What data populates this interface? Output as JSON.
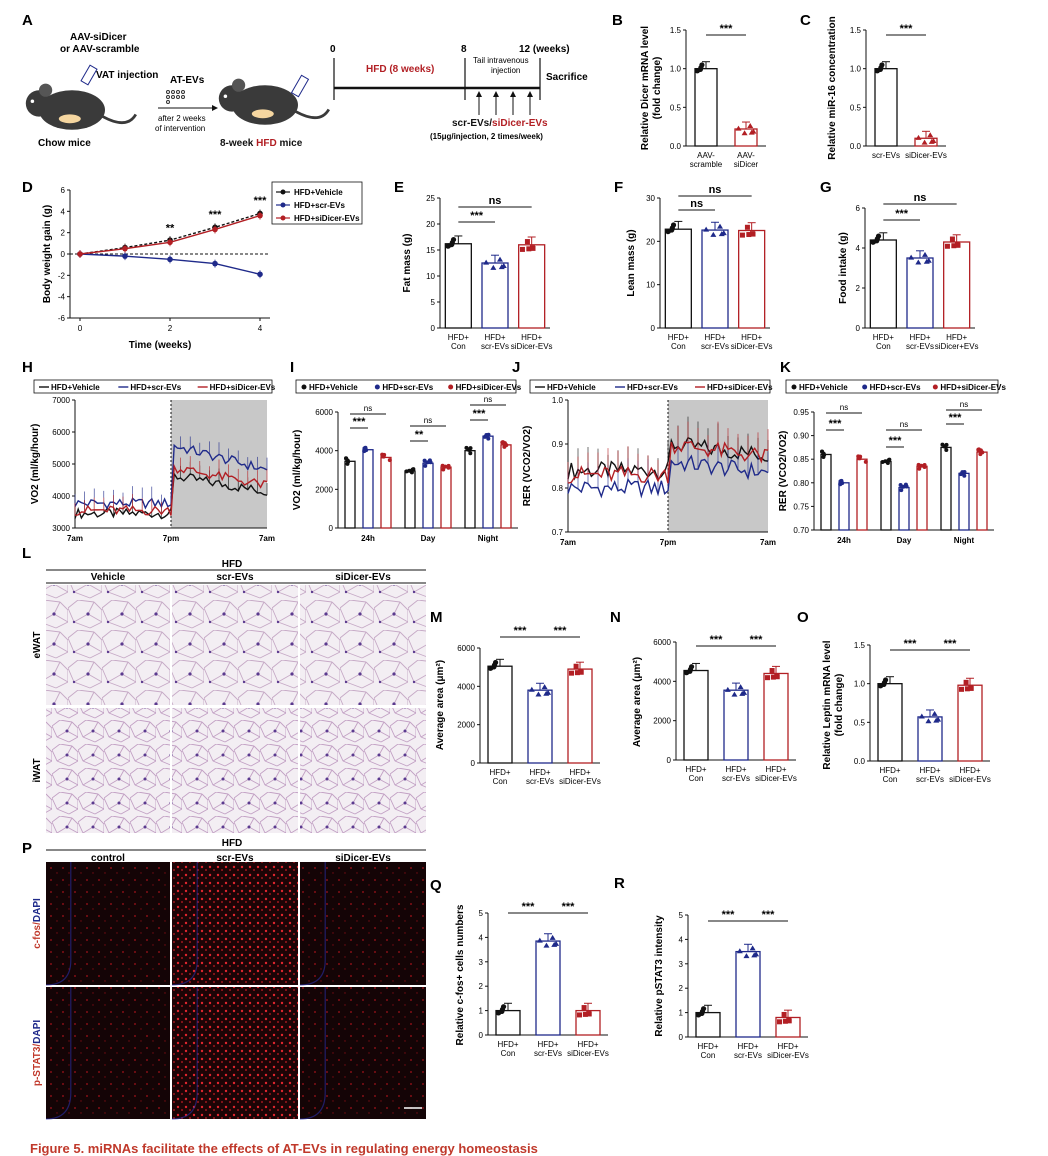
{
  "caption": "Figure 5. miRNAs facilitate the effects of AT-EVs in regulating energy homeostasis",
  "colors": {
    "black": "#111111",
    "blue": "#1f2a8a",
    "red": "#b21f24",
    "shade": "#c8c8c8"
  },
  "panels": {
    "A": {
      "label": "A",
      "aav1": "AAV-siDicer",
      "aav2": "or  AAV-scramble",
      "vat": "VAT injection",
      "atevs": "AT-EVs",
      "after1": "after 2 weeks",
      "after2": "of intervention",
      "chow": "Chow mice",
      "hfd_mice_pre": "8-week ",
      "hfd_mice_hfd": "HFD",
      "hfd_mice_post": " mice",
      "t0": "0",
      "t8": "8",
      "t12": "12 (weeks)",
      "hfd8": "HFD (8 weeks)",
      "tail1": "Tail intravenous",
      "tail2": "injection",
      "sacrifice": "Sacrifice",
      "ev_scr": "scr-EVs/",
      "ev_si": "siDicer-EVs",
      "dose": "(15μg/injection, 2 times/week)"
    },
    "B": {
      "label": "B",
      "ylabel1": "Relative Dicer mRNA level",
      "ylabel2": "(fold change)",
      "ticks": [
        "0.0",
        "0.5",
        "1.0",
        "1.5"
      ],
      "groups": [
        "AAV-\nscramble",
        "AAV-\nsiDicer"
      ],
      "values": [
        1.0,
        0.22
      ],
      "sig": "***"
    },
    "C": {
      "label": "C",
      "ylabel": "Relative miR-16 concentration",
      "ticks": [
        "0.0",
        "0.5",
        "1.0",
        "1.5"
      ],
      "groups": [
        "scr-EVs",
        "siDicer-EVs"
      ],
      "values": [
        1.0,
        0.1
      ],
      "sig": "***"
    },
    "D": {
      "label": "D",
      "ylabel": "Body weight gain (g)",
      "xlabel": "Time (weeks)",
      "yticks": [
        "-6",
        "-4",
        "-2",
        "0",
        "2",
        "4",
        "6"
      ],
      "xticks": [
        "0",
        "2",
        "4"
      ],
      "legend": [
        "HFD+Vehicle",
        "HFD+scr-EVs",
        "HFD+siDicer-EVs"
      ],
      "sigs": [
        "**",
        "***",
        "***"
      ]
    },
    "E": {
      "label": "E",
      "ylabel": "Fat mass (g)",
      "ticks": [
        "0",
        "5",
        "10",
        "15",
        "20",
        "25"
      ],
      "groups": [
        "HFD+\nCon",
        "HFD+\nscr-EVs",
        "HFD+\nsiDicer-EVs"
      ],
      "values": [
        16.2,
        12.5,
        16.0
      ],
      "sig1": "***",
      "sig2": "ns"
    },
    "F": {
      "label": "F",
      "ylabel": "Lean mass (g)",
      "ticks": [
        "0",
        "10",
        "20",
        "30"
      ],
      "groups": [
        "HFD+\nCon",
        "HFD+\nscr-EVs",
        "HFD+\nsiDicer-EVs"
      ],
      "values": [
        22.8,
        22.6,
        22.5
      ],
      "sig1": "ns",
      "sig2": "ns"
    },
    "G": {
      "label": "G",
      "ylabel": "Food intake (g)",
      "ticks": [
        "0",
        "2",
        "4",
        "6"
      ],
      "groups": [
        "HFD+\nCon",
        "HFD+\nscr-EVs",
        "HFD+\nsiDicer+EVs"
      ],
      "values": [
        4.4,
        3.5,
        4.3
      ],
      "sig1": "***",
      "sig2": "ns"
    },
    "H": {
      "label": "H",
      "ylabel": "VO2 (ml/kg/hour)",
      "ticks": [
        "3000",
        "4000",
        "5000",
        "6000",
        "7000"
      ],
      "xticks": [
        "7am",
        "7pm",
        "7am"
      ],
      "legend": [
        "HFD+Vehicle",
        "HFD+scr-EVs",
        "HFD+siDicer-EVs"
      ]
    },
    "I": {
      "label": "I",
      "ylabel": "VO2 (ml/kg/hour)",
      "ticks": [
        "0",
        "2000",
        "4000",
        "6000"
      ],
      "groups": [
        "24h",
        "Day",
        "Night"
      ],
      "legend": [
        "HFD+Vehicle",
        "HFD+scr-EVs",
        "HFD+siDicer-EVs"
      ],
      "values": [
        [
          3450,
          4050,
          3650
        ],
        [
          2950,
          3350,
          3150
        ],
        [
          4000,
          4750,
          4300
        ]
      ],
      "sigs": [
        [
          "ns",
          "***"
        ],
        [
          "ns",
          "**"
        ],
        [
          "ns",
          "***"
        ]
      ]
    },
    "J": {
      "label": "J",
      "ylabel": "RER (VCO2/VO2)",
      "ticks": [
        "0.7",
        "0.8",
        "0.9",
        "1.0"
      ],
      "xticks": [
        "7am",
        "7pm",
        "7am"
      ],
      "legend": [
        "HFD+Vehicle",
        "HFD+scr-EVs",
        "HFD+siDicer-EVs"
      ]
    },
    "K": {
      "label": "K",
      "ylabel": "RER (VCO2/VO2)",
      "ticks": [
        "0.70",
        "0.75",
        "0.80",
        "0.85",
        "0.90",
        "0.95"
      ],
      "groups": [
        "24h",
        "Day",
        "Night"
      ],
      "legend": [
        "HFD+Vehicle",
        "HFD+scr-EVs",
        "HFD+siDicer-EVs"
      ],
      "values": [
        [
          0.86,
          0.8,
          0.85
        ],
        [
          0.845,
          0.79,
          0.835
        ],
        [
          0.875,
          0.82,
          0.865
        ]
      ],
      "sigs": [
        [
          "ns",
          "***"
        ],
        [
          "ns",
          "***"
        ],
        [
          "ns",
          "***"
        ]
      ]
    },
    "L": {
      "label": "L",
      "hfd": "HFD",
      "cols": [
        "Vehicle",
        "scr-EVs",
        "siDicer-EVs"
      ],
      "rows": [
        "eWAT",
        "iWAT"
      ]
    },
    "M": {
      "label": "M",
      "ylabel": "Average area (μm²)",
      "ticks": [
        "0",
        "2000",
        "4000",
        "6000"
      ],
      "groups": [
        "HFD+\nCon",
        "HFD+\nscr-EVs",
        "HFD+\nsiDicer-EVs"
      ],
      "values": [
        5050,
        3800,
        4900
      ],
      "sig1": "***",
      "sig2": "***"
    },
    "N": {
      "label": "N",
      "ylabel": "Average area (μm²)",
      "ticks": [
        "0",
        "2000",
        "4000",
        "6000"
      ],
      "groups": [
        "HFD+\nCon",
        "HFD+\nscr-EVs",
        "HFD+\nsiDicer-EVs"
      ],
      "values": [
        4550,
        3550,
        4400
      ],
      "sig1": "***",
      "sig2": "***"
    },
    "O": {
      "label": "O",
      "ylabel1": "Relative Leptin mRNA level",
      "ylabel2": "(fold change)",
      "ticks": [
        "0.0",
        "0.5",
        "1.0",
        "1.5"
      ],
      "groups": [
        "HFD+\nCon",
        "HFD+\nscr-EVs",
        "HFD+\nsiDicer-EVs"
      ],
      "values": [
        1.0,
        0.57,
        0.98
      ],
      "sig1": "***",
      "sig2": "***"
    },
    "P": {
      "label": "P",
      "hfd": "HFD",
      "cols": [
        "control",
        "scr-EVs",
        "siDicer-EVs"
      ],
      "rows": [
        "c-fos/DAPI",
        "p-STAT3/DAPI"
      ]
    },
    "Q": {
      "label": "Q",
      "ylabel": "Relative c-fos+ cells numbers",
      "ticks": [
        "0",
        "1",
        "2",
        "3",
        "4",
        "5"
      ],
      "groups": [
        "HFD+\nCon",
        "HFD+\nscr-EVs",
        "HFD+\nsiDicer-EVs"
      ],
      "values": [
        1.0,
        3.85,
        1.0
      ],
      "sig1": "***",
      "sig2": "***"
    },
    "R": {
      "label": "R",
      "ylabel": "Relative pSTAT3 intensity",
      "ticks": [
        "0",
        "1",
        "2",
        "3",
        "4",
        "5"
      ],
      "groups": [
        "HFD+\nCon",
        "HFD+\nscr-EVs",
        "HFD+\nsiDicer-EVs"
      ],
      "values": [
        1.0,
        3.5,
        0.8
      ],
      "sig1": "***",
      "sig2": "***"
    }
  },
  "chart_data": [
    {
      "panel": "B",
      "type": "bar",
      "categories": [
        "AAV-scramble",
        "AAV-siDicer"
      ],
      "values": [
        1.0,
        0.22
      ],
      "ylabel": "Relative Dicer mRNA level (fold change)",
      "ylim": [
        0,
        1.5
      ]
    },
    {
      "panel": "C",
      "type": "bar",
      "categories": [
        "scr-EVs",
        "siDicer-EVs"
      ],
      "values": [
        1.0,
        0.1
      ],
      "ylabel": "Relative miR-16 concentration",
      "ylim": [
        0,
        1.5
      ]
    },
    {
      "panel": "D",
      "type": "line",
      "x": [
        0,
        1,
        2,
        3,
        4
      ],
      "xlabel": "Time (weeks)",
      "ylabel": "Body weight gain (g)",
      "ylim": [
        -6,
        6
      ],
      "series": [
        {
          "name": "HFD+Vehicle",
          "values": [
            0,
            0.6,
            1.3,
            2.5,
            3.8
          ]
        },
        {
          "name": "HFD+scr-EVs",
          "values": [
            0,
            -0.2,
            -0.5,
            -0.9,
            -1.9
          ]
        },
        {
          "name": "HFD+siDicer-EVs",
          "values": [
            0,
            0.5,
            1.1,
            2.3,
            3.6
          ]
        }
      ]
    },
    {
      "panel": "E",
      "type": "bar",
      "categories": [
        "HFD+Con",
        "HFD+scr-EVs",
        "HFD+siDicer-EVs"
      ],
      "values": [
        16.2,
        12.5,
        16.0
      ],
      "ylabel": "Fat mass (g)",
      "ylim": [
        0,
        25
      ]
    },
    {
      "panel": "F",
      "type": "bar",
      "categories": [
        "HFD+Con",
        "HFD+scr-EVs",
        "HFD+siDicer-EVs"
      ],
      "values": [
        22.8,
        22.6,
        22.5
      ],
      "ylabel": "Lean mass (g)",
      "ylim": [
        0,
        30
      ]
    },
    {
      "panel": "G",
      "type": "bar",
      "categories": [
        "HFD+Con",
        "HFD+scr-EVs",
        "HFD+siDicer+EVs"
      ],
      "values": [
        4.4,
        3.5,
        4.3
      ],
      "ylabel": "Food intake (g)",
      "ylim": [
        0,
        6
      ]
    },
    {
      "panel": "I",
      "type": "bar",
      "categories": [
        "24h",
        "Day",
        "Night"
      ],
      "ylabel": "VO2 (ml/kg/hour)",
      "ylim": [
        0,
        6000
      ],
      "series": [
        {
          "name": "HFD+Vehicle",
          "values": [
            3450,
            2950,
            4000
          ]
        },
        {
          "name": "HFD+scr-EVs",
          "values": [
            4050,
            3350,
            4750
          ]
        },
        {
          "name": "HFD+siDicer-EVs",
          "values": [
            3650,
            3150,
            4300
          ]
        }
      ]
    },
    {
      "panel": "K",
      "type": "bar",
      "categories": [
        "24h",
        "Day",
        "Night"
      ],
      "ylabel": "RER (VCO2/VO2)",
      "ylim": [
        0.7,
        0.95
      ],
      "series": [
        {
          "name": "HFD+Vehicle",
          "values": [
            0.86,
            0.845,
            0.875
          ]
        },
        {
          "name": "HFD+scr-EVs",
          "values": [
            0.8,
            0.79,
            0.82
          ]
        },
        {
          "name": "HFD+siDicer-EVs",
          "values": [
            0.85,
            0.835,
            0.865
          ]
        }
      ]
    },
    {
      "panel": "M",
      "type": "bar",
      "categories": [
        "HFD+Con",
        "HFD+scr-EVs",
        "HFD+siDicer-EVs"
      ],
      "values": [
        5050,
        3800,
        4900
      ],
      "ylabel": "Average area (μm²)",
      "ylim": [
        0,
        6000
      ]
    },
    {
      "panel": "N",
      "type": "bar",
      "categories": [
        "HFD+Con",
        "HFD+scr-EVs",
        "HFD+siDicer-EVs"
      ],
      "values": [
        4550,
        3550,
        4400
      ],
      "ylabel": "Average area (μm²)",
      "ylim": [
        0,
        6000
      ]
    },
    {
      "panel": "O",
      "type": "bar",
      "categories": [
        "HFD+Con",
        "HFD+scr-EVs",
        "HFD+siDicer-EVs"
      ],
      "values": [
        1.0,
        0.57,
        0.98
      ],
      "ylabel": "Relative Leptin mRNA level (fold change)",
      "ylim": [
        0,
        1.5
      ]
    },
    {
      "panel": "Q",
      "type": "bar",
      "categories": [
        "HFD+Con",
        "HFD+scr-EVs",
        "HFD+siDicer-EVs"
      ],
      "values": [
        1.0,
        3.85,
        1.0
      ],
      "ylabel": "Relative c-fos+ cells numbers",
      "ylim": [
        0,
        5
      ]
    },
    {
      "panel": "R",
      "type": "bar",
      "categories": [
        "HFD+Con",
        "HFD+scr-EVs",
        "HFD+siDicer-EVs"
      ],
      "values": [
        1.0,
        3.5,
        0.8
      ],
      "ylabel": "Relative pSTAT3 intensity",
      "ylim": [
        0,
        5
      ]
    }
  ]
}
